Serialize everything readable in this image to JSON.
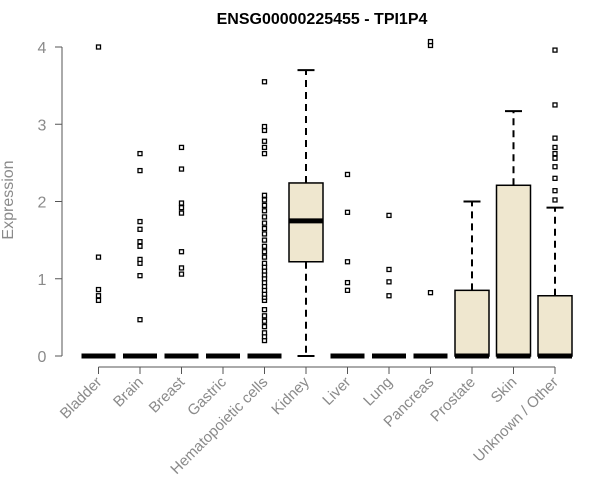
{
  "chart_data": {
    "type": "boxplot",
    "title": "ENSG00000225455 - TPI1P4",
    "ylabel": "Expression",
    "xlabel": "",
    "ylim": [
      0,
      4
    ],
    "yticks": [
      "0",
      "1",
      "2",
      "3",
      "4"
    ],
    "box_fill": "#efe7cf",
    "categories": [
      "Bladder",
      "Brain",
      "Breast",
      "Gastric",
      "Hematopoietic cells",
      "Kidney",
      "Liver",
      "Lung",
      "Pancreas",
      "Prostate",
      "Skin",
      "Unknown / Other"
    ],
    "series": [
      {
        "category": "Bladder",
        "q1": 0,
        "median": 0,
        "q3": 0,
        "whisker_low": 0,
        "whisker_high": 0,
        "outliers": [
          0.72,
          0.78,
          0.86,
          1.28,
          4.0
        ]
      },
      {
        "category": "Brain",
        "q1": 0,
        "median": 0,
        "q3": 0,
        "whisker_low": 0,
        "whisker_high": 0,
        "outliers": [
          0.47,
          1.04,
          1.2,
          1.25,
          1.42,
          1.48,
          1.64,
          1.74,
          2.4,
          2.62
        ]
      },
      {
        "category": "Breast",
        "q1": 0,
        "median": 0,
        "q3": 0,
        "whisker_low": 0,
        "whisker_high": 0,
        "outliers": [
          1.06,
          1.14,
          1.35,
          1.85,
          1.92,
          1.98,
          2.42,
          2.7
        ]
      },
      {
        "category": "Gastric",
        "q1": 0,
        "median": 0,
        "q3": 0,
        "whisker_low": 0,
        "whisker_high": 0,
        "outliers": []
      },
      {
        "category": "Hematopoietic cells",
        "q1": 0,
        "median": 0,
        "q3": 0,
        "whisker_low": 0,
        "whisker_high": 0,
        "outliers": [
          0.2,
          0.25,
          0.3,
          0.38,
          0.45,
          0.52,
          0.6,
          0.72,
          0.76,
          0.8,
          0.85,
          0.9,
          0.95,
          1.0,
          1.05,
          1.1,
          1.15,
          1.2,
          1.28,
          1.35,
          1.42,
          1.5,
          1.58,
          1.65,
          1.72,
          1.8,
          1.88,
          1.95,
          2.02,
          2.08,
          2.62,
          2.7,
          2.78,
          2.92,
          2.97,
          3.55
        ]
      },
      {
        "category": "Kidney",
        "q1": 1.22,
        "median": 1.75,
        "q3": 2.24,
        "whisker_low": 0,
        "whisker_high": 3.7,
        "outliers": []
      },
      {
        "category": "Liver",
        "q1": 0,
        "median": 0,
        "q3": 0,
        "whisker_low": 0,
        "whisker_high": 0,
        "outliers": [
          0.85,
          0.95,
          1.22,
          1.86,
          2.35
        ]
      },
      {
        "category": "Lung",
        "q1": 0,
        "median": 0,
        "q3": 0,
        "whisker_low": 0,
        "whisker_high": 0,
        "outliers": [
          0.78,
          0.96,
          1.12,
          1.82
        ]
      },
      {
        "category": "Pancreas",
        "q1": 0,
        "median": 0,
        "q3": 0,
        "whisker_low": 0,
        "whisker_high": 0,
        "outliers": [
          0.82,
          4.02,
          4.07
        ]
      },
      {
        "category": "Prostate",
        "q1": 0,
        "median": 0,
        "q3": 0.85,
        "whisker_low": 0,
        "whisker_high": 2.0,
        "outliers": []
      },
      {
        "category": "Skin",
        "q1": 0,
        "median": 0,
        "q3": 2.21,
        "whisker_low": 0,
        "whisker_high": 3.17,
        "outliers": []
      },
      {
        "category": "Unknown / Other",
        "q1": 0,
        "median": 0,
        "q3": 0.78,
        "whisker_low": 0,
        "whisker_high": 1.92,
        "outliers": [
          2.02,
          2.14,
          2.3,
          2.45,
          2.56,
          2.62,
          2.7,
          2.82,
          3.25,
          3.96
        ]
      }
    ]
  }
}
